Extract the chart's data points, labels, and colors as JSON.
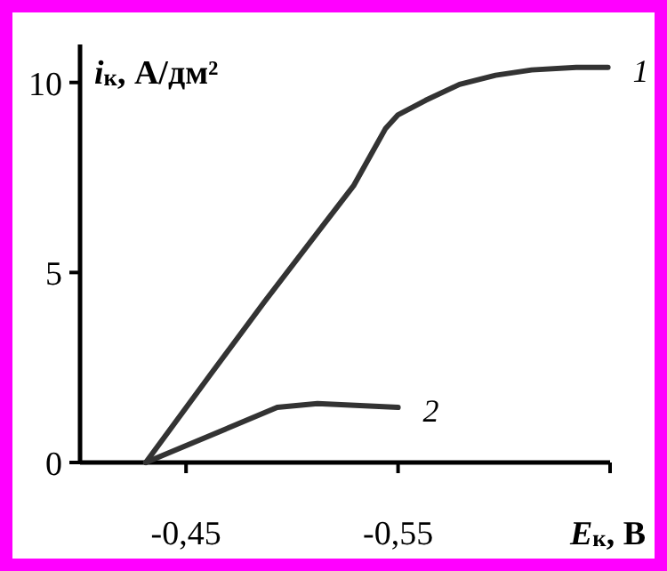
{
  "chart_data": {
    "type": "line",
    "xlabel": "E$_{к}$, В",
    "ylabel": "i$_{к}$, А/дм²",
    "xlim": [
      -0.4,
      -0.65
    ],
    "xticks": [
      {
        "value": -0.45,
        "label": "-0,45"
      },
      {
        "value": -0.55,
        "label": "-0,55"
      },
      {
        "value": -0.65,
        "label": null
      }
    ],
    "ylim": [
      0,
      11
    ],
    "yticks": [
      0,
      5,
      10
    ],
    "grid": false,
    "marker": "none",
    "line_style": "solid",
    "series": [
      {
        "name": "1",
        "color": "#333333",
        "x": [
          -0.431,
          -0.462,
          -0.487,
          -0.516,
          -0.529,
          -0.537,
          -0.544,
          -0.55,
          -0.563,
          -0.579,
          -0.596,
          -0.613,
          -0.634,
          -0.649
        ],
        "values": [
          0,
          2.35,
          4.23,
          6.34,
          7.28,
          8.08,
          8.78,
          9.15,
          9.53,
          9.95,
          10.19,
          10.33,
          10.4,
          10.4
        ]
      },
      {
        "name": "2",
        "color": "#333333",
        "x": [
          -0.431,
          -0.493,
          -0.512,
          -0.55
        ],
        "values": [
          0,
          1.45,
          1.55,
          1.45
        ]
      }
    ]
  }
}
